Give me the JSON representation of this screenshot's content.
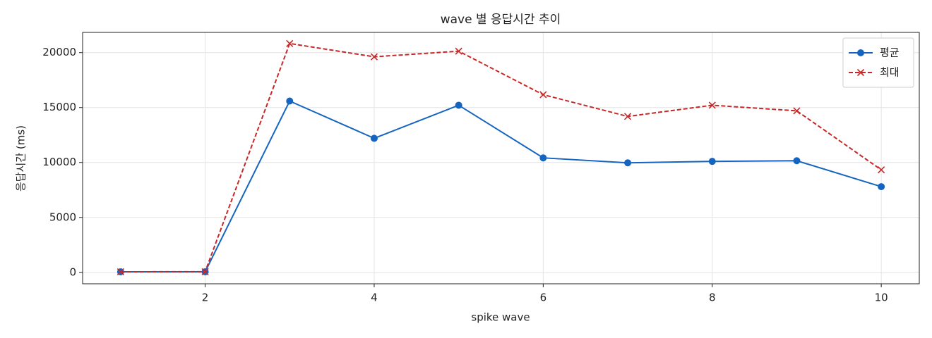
{
  "chart_data": {
    "type": "line",
    "title": "wave 별 응답시간 추이",
    "x_label": "spike wave",
    "y_label": "응답시간 (ms)",
    "x": [
      1,
      2,
      3,
      4,
      5,
      6,
      7,
      8,
      9,
      10
    ],
    "series": [
      {
        "name": "평균",
        "color": "#1565c0",
        "marker": "circle",
        "linestyle": "solid",
        "values": [
          50,
          50,
          15590,
          12200,
          15210,
          10420,
          9970,
          10100,
          10160,
          7800
        ]
      },
      {
        "name": "최대",
        "color": "#c62828",
        "marker": "x",
        "linestyle": "dashed",
        "values": [
          50,
          60,
          20830,
          19620,
          20130,
          16170,
          14190,
          15210,
          14700,
          9330
        ]
      }
    ],
    "xlim": [
      0.55,
      10.45
    ],
    "ylim": [
      -1040,
      21840
    ],
    "xticks": [
      2,
      4,
      6,
      8,
      10
    ],
    "yticks": [
      0,
      5000,
      10000,
      15000,
      20000
    ],
    "grid": true,
    "legend": "upper right"
  }
}
